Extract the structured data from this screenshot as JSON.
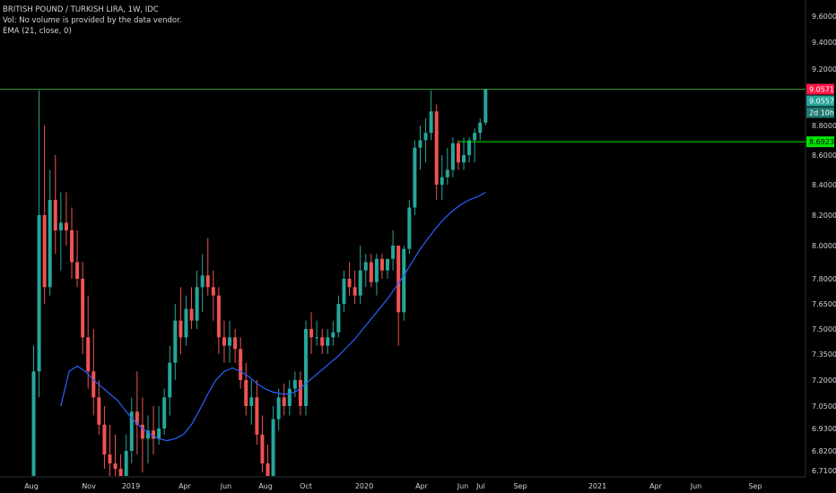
{
  "legend": {
    "symbol": "BRITISH POUND / TURKISH LIRA, 1W, IDC",
    "volume_note": "Vol: No volume is provided by the data vendor.",
    "indicator": "EMA (21, close, 0)"
  },
  "badges": {
    "last_price": "9.0571",
    "current_price": "9.0557",
    "countdown": "2d 10h",
    "line_price": "8.6923"
  },
  "colors": {
    "background": "#000000",
    "up": "#26a69a",
    "down": "#ef5350",
    "ema": "#2962ff",
    "price_line": "#4caf50",
    "horizontal_line": "#00e600",
    "last_badge": "#ff1744",
    "axis_text": "#d1d4dc"
  },
  "chart_data": {
    "type": "candlestick",
    "y_tick_labels": [
      "9.6000",
      "9.4000",
      "9.2000",
      "8.8000",
      "8.6000",
      "8.4000",
      "8.2000",
      "8.0000",
      "7.8000",
      "7.6500",
      "7.5000",
      "7.3500",
      "7.2000",
      "7.0500",
      "6.9300",
      "6.8200",
      "6.7100"
    ],
    "y_tick_values": [
      9.6,
      9.4,
      9.2,
      8.8,
      8.6,
      8.4,
      8.2,
      8.0,
      7.8,
      7.65,
      7.5,
      7.35,
      7.2,
      7.05,
      6.93,
      6.82,
      6.71
    ],
    "x_tick_labels": [
      "Aug",
      "Nov",
      "2019",
      "Apr",
      "Jun",
      "Aug",
      "Oct",
      "2020",
      "Apr",
      "Jun",
      "Jul",
      "Sep",
      "2021",
      "Apr",
      "Jun",
      "Sep"
    ],
    "horizontal_line_value": 8.69,
    "last_value": 9.057,
    "candles": [
      {
        "o": 6.6,
        "h": 7.4,
        "l": 6.55,
        "c": 7.25
      },
      {
        "o": 7.25,
        "h": 9.05,
        "l": 7.1,
        "c": 8.2
      },
      {
        "o": 8.2,
        "h": 8.8,
        "l": 7.65,
        "c": 7.75
      },
      {
        "o": 7.75,
        "h": 8.5,
        "l": 7.7,
        "c": 8.3
      },
      {
        "o": 8.3,
        "h": 8.6,
        "l": 7.95,
        "c": 8.1
      },
      {
        "o": 8.1,
        "h": 8.35,
        "l": 7.85,
        "c": 8.15
      },
      {
        "o": 8.15,
        "h": 8.35,
        "l": 8.0,
        "c": 8.1
      },
      {
        "o": 8.1,
        "h": 8.25,
        "l": 7.8,
        "c": 7.9
      },
      {
        "o": 7.9,
        "h": 8.1,
        "l": 7.75,
        "c": 7.8
      },
      {
        "o": 7.8,
        "h": 7.9,
        "l": 7.35,
        "c": 7.45
      },
      {
        "o": 7.45,
        "h": 7.7,
        "l": 7.15,
        "c": 7.25
      },
      {
        "o": 7.25,
        "h": 7.5,
        "l": 7.0,
        "c": 7.1
      },
      {
        "o": 7.1,
        "h": 7.2,
        "l": 6.9,
        "c": 6.95
      },
      {
        "o": 6.95,
        "h": 7.05,
        "l": 6.72,
        "c": 6.8
      },
      {
        "o": 6.8,
        "h": 6.95,
        "l": 6.62,
        "c": 6.75
      },
      {
        "o": 6.75,
        "h": 6.9,
        "l": 6.6,
        "c": 6.72
      },
      {
        "o": 6.72,
        "h": 6.8,
        "l": 6.5,
        "c": 6.65
      },
      {
        "o": 6.65,
        "h": 6.9,
        "l": 6.55,
        "c": 6.82
      },
      {
        "o": 6.82,
        "h": 7.1,
        "l": 6.75,
        "c": 7.02
      },
      {
        "o": 7.02,
        "h": 7.25,
        "l": 6.8,
        "c": 6.95
      },
      {
        "o": 6.95,
        "h": 7.1,
        "l": 6.7,
        "c": 6.88
      },
      {
        "o": 6.88,
        "h": 7.0,
        "l": 6.75,
        "c": 6.92
      },
      {
        "o": 6.92,
        "h": 7.05,
        "l": 6.8,
        "c": 6.88
      },
      {
        "o": 6.88,
        "h": 7.05,
        "l": 6.85,
        "c": 6.93
      },
      {
        "o": 6.93,
        "h": 7.15,
        "l": 6.9,
        "c": 7.1
      },
      {
        "o": 7.1,
        "h": 7.4,
        "l": 7.0,
        "c": 7.3
      },
      {
        "o": 7.3,
        "h": 7.65,
        "l": 7.2,
        "c": 7.55
      },
      {
        "o": 7.55,
        "h": 7.75,
        "l": 7.35,
        "c": 7.45
      },
      {
        "o": 7.45,
        "h": 7.7,
        "l": 7.4,
        "c": 7.62
      },
      {
        "o": 7.62,
        "h": 7.75,
        "l": 7.5,
        "c": 7.55
      },
      {
        "o": 7.55,
        "h": 7.85,
        "l": 7.5,
        "c": 7.75
      },
      {
        "o": 7.75,
        "h": 7.95,
        "l": 7.6,
        "c": 7.82
      },
      {
        "o": 7.82,
        "h": 8.05,
        "l": 7.7,
        "c": 7.75
      },
      {
        "o": 7.75,
        "h": 7.85,
        "l": 7.55,
        "c": 7.7
      },
      {
        "o": 7.7,
        "h": 7.75,
        "l": 7.35,
        "c": 7.45
      },
      {
        "o": 7.45,
        "h": 7.55,
        "l": 7.3,
        "c": 7.4
      },
      {
        "o": 7.4,
        "h": 7.55,
        "l": 7.3,
        "c": 7.45
      },
      {
        "o": 7.45,
        "h": 7.5,
        "l": 7.3,
        "c": 7.38
      },
      {
        "o": 7.38,
        "h": 7.45,
        "l": 7.15,
        "c": 7.2
      },
      {
        "o": 7.2,
        "h": 7.3,
        "l": 7.0,
        "c": 7.05
      },
      {
        "o": 7.05,
        "h": 7.2,
        "l": 6.95,
        "c": 7.1
      },
      {
        "o": 7.1,
        "h": 7.2,
        "l": 6.85,
        "c": 6.9
      },
      {
        "o": 6.9,
        "h": 7.0,
        "l": 6.7,
        "c": 6.75
      },
      {
        "o": 6.75,
        "h": 6.85,
        "l": 6.55,
        "c": 6.65
      },
      {
        "o": 6.65,
        "h": 7.05,
        "l": 6.62,
        "c": 6.98
      },
      {
        "o": 6.98,
        "h": 7.15,
        "l": 6.92,
        "c": 7.1
      },
      {
        "o": 7.1,
        "h": 7.18,
        "l": 7.0,
        "c": 7.05
      },
      {
        "o": 7.05,
        "h": 7.2,
        "l": 7.0,
        "c": 7.15
      },
      {
        "o": 7.15,
        "h": 7.25,
        "l": 7.1,
        "c": 7.2
      },
      {
        "o": 7.2,
        "h": 7.25,
        "l": 7.0,
        "c": 7.05
      },
      {
        "o": 7.05,
        "h": 7.55,
        "l": 7.0,
        "c": 7.5
      },
      {
        "o": 7.5,
        "h": 7.6,
        "l": 7.35,
        "c": 7.45
      },
      {
        "o": 7.45,
        "h": 7.55,
        "l": 7.4,
        "c": 7.45
      },
      {
        "o": 7.45,
        "h": 7.5,
        "l": 7.35,
        "c": 7.4
      },
      {
        "o": 7.4,
        "h": 7.5,
        "l": 7.35,
        "c": 7.45
      },
      {
        "o": 7.45,
        "h": 7.55,
        "l": 7.4,
        "c": 7.48
      },
      {
        "o": 7.48,
        "h": 7.7,
        "l": 7.45,
        "c": 7.65
      },
      {
        "o": 7.65,
        "h": 7.85,
        "l": 7.6,
        "c": 7.8
      },
      {
        "o": 7.8,
        "h": 7.9,
        "l": 7.7,
        "c": 7.75
      },
      {
        "o": 7.75,
        "h": 7.85,
        "l": 7.65,
        "c": 7.7
      },
      {
        "o": 7.7,
        "h": 8.0,
        "l": 7.65,
        "c": 7.85
      },
      {
        "o": 7.85,
        "h": 7.95,
        "l": 7.75,
        "c": 7.9
      },
      {
        "o": 7.9,
        "h": 7.95,
        "l": 7.75,
        "c": 7.78
      },
      {
        "o": 7.78,
        "h": 7.95,
        "l": 7.7,
        "c": 7.92
      },
      {
        "o": 7.92,
        "h": 7.95,
        "l": 7.8,
        "c": 7.85
      },
      {
        "o": 7.85,
        "h": 7.92,
        "l": 7.8,
        "c": 7.92
      },
      {
        "o": 7.92,
        "h": 8.1,
        "l": 7.85,
        "c": 8.0
      },
      {
        "o": 8.0,
        "h": 8.0,
        "l": 7.4,
        "c": 7.6
      },
      {
        "o": 7.6,
        "h": 8.0,
        "l": 7.55,
        "c": 7.98
      },
      {
        "o": 7.98,
        "h": 8.3,
        "l": 7.95,
        "c": 8.25
      },
      {
        "o": 8.25,
        "h": 8.7,
        "l": 8.2,
        "c": 8.65
      },
      {
        "o": 8.65,
        "h": 8.8,
        "l": 8.5,
        "c": 8.7
      },
      {
        "o": 8.7,
        "h": 8.85,
        "l": 8.55,
        "c": 8.75
      },
      {
        "o": 8.75,
        "h": 9.05,
        "l": 8.7,
        "c": 8.9
      },
      {
        "o": 8.9,
        "h": 8.95,
        "l": 8.3,
        "c": 8.4
      },
      {
        "o": 8.4,
        "h": 8.6,
        "l": 8.3,
        "c": 8.45
      },
      {
        "o": 8.45,
        "h": 8.65,
        "l": 8.4,
        "c": 8.5
      },
      {
        "o": 8.5,
        "h": 8.72,
        "l": 8.45,
        "c": 8.68
      },
      {
        "o": 8.68,
        "h": 8.7,
        "l": 8.5,
        "c": 8.55
      },
      {
        "o": 8.55,
        "h": 8.72,
        "l": 8.5,
        "c": 8.6
      },
      {
        "o": 8.6,
        "h": 8.72,
        "l": 8.55,
        "c": 8.7
      },
      {
        "o": 8.7,
        "h": 8.78,
        "l": 8.55,
        "c": 8.75
      },
      {
        "o": 8.75,
        "h": 8.85,
        "l": 8.7,
        "c": 8.82
      },
      {
        "o": 8.82,
        "h": 9.06,
        "l": 8.8,
        "c": 9.0571
      }
    ],
    "ema": [
      7.05,
      7.25,
      7.28,
      7.25,
      7.2,
      7.16,
      7.12,
      7.08,
      7.02,
      6.97,
      6.93,
      6.9,
      6.88,
      6.87,
      6.88,
      6.9,
      6.95,
      7.03,
      7.12,
      7.2,
      7.25,
      7.27,
      7.25,
      7.22,
      7.18,
      7.15,
      7.13,
      7.12,
      7.12,
      7.14,
      7.18,
      7.22,
      7.26,
      7.3,
      7.34,
      7.39,
      7.44,
      7.5,
      7.56,
      7.62,
      7.68,
      7.75,
      7.82,
      7.9,
      7.98,
      8.05,
      8.12,
      8.18,
      8.23,
      8.27,
      8.3,
      8.32,
      8.35
    ],
    "ema_start_index": 5
  }
}
